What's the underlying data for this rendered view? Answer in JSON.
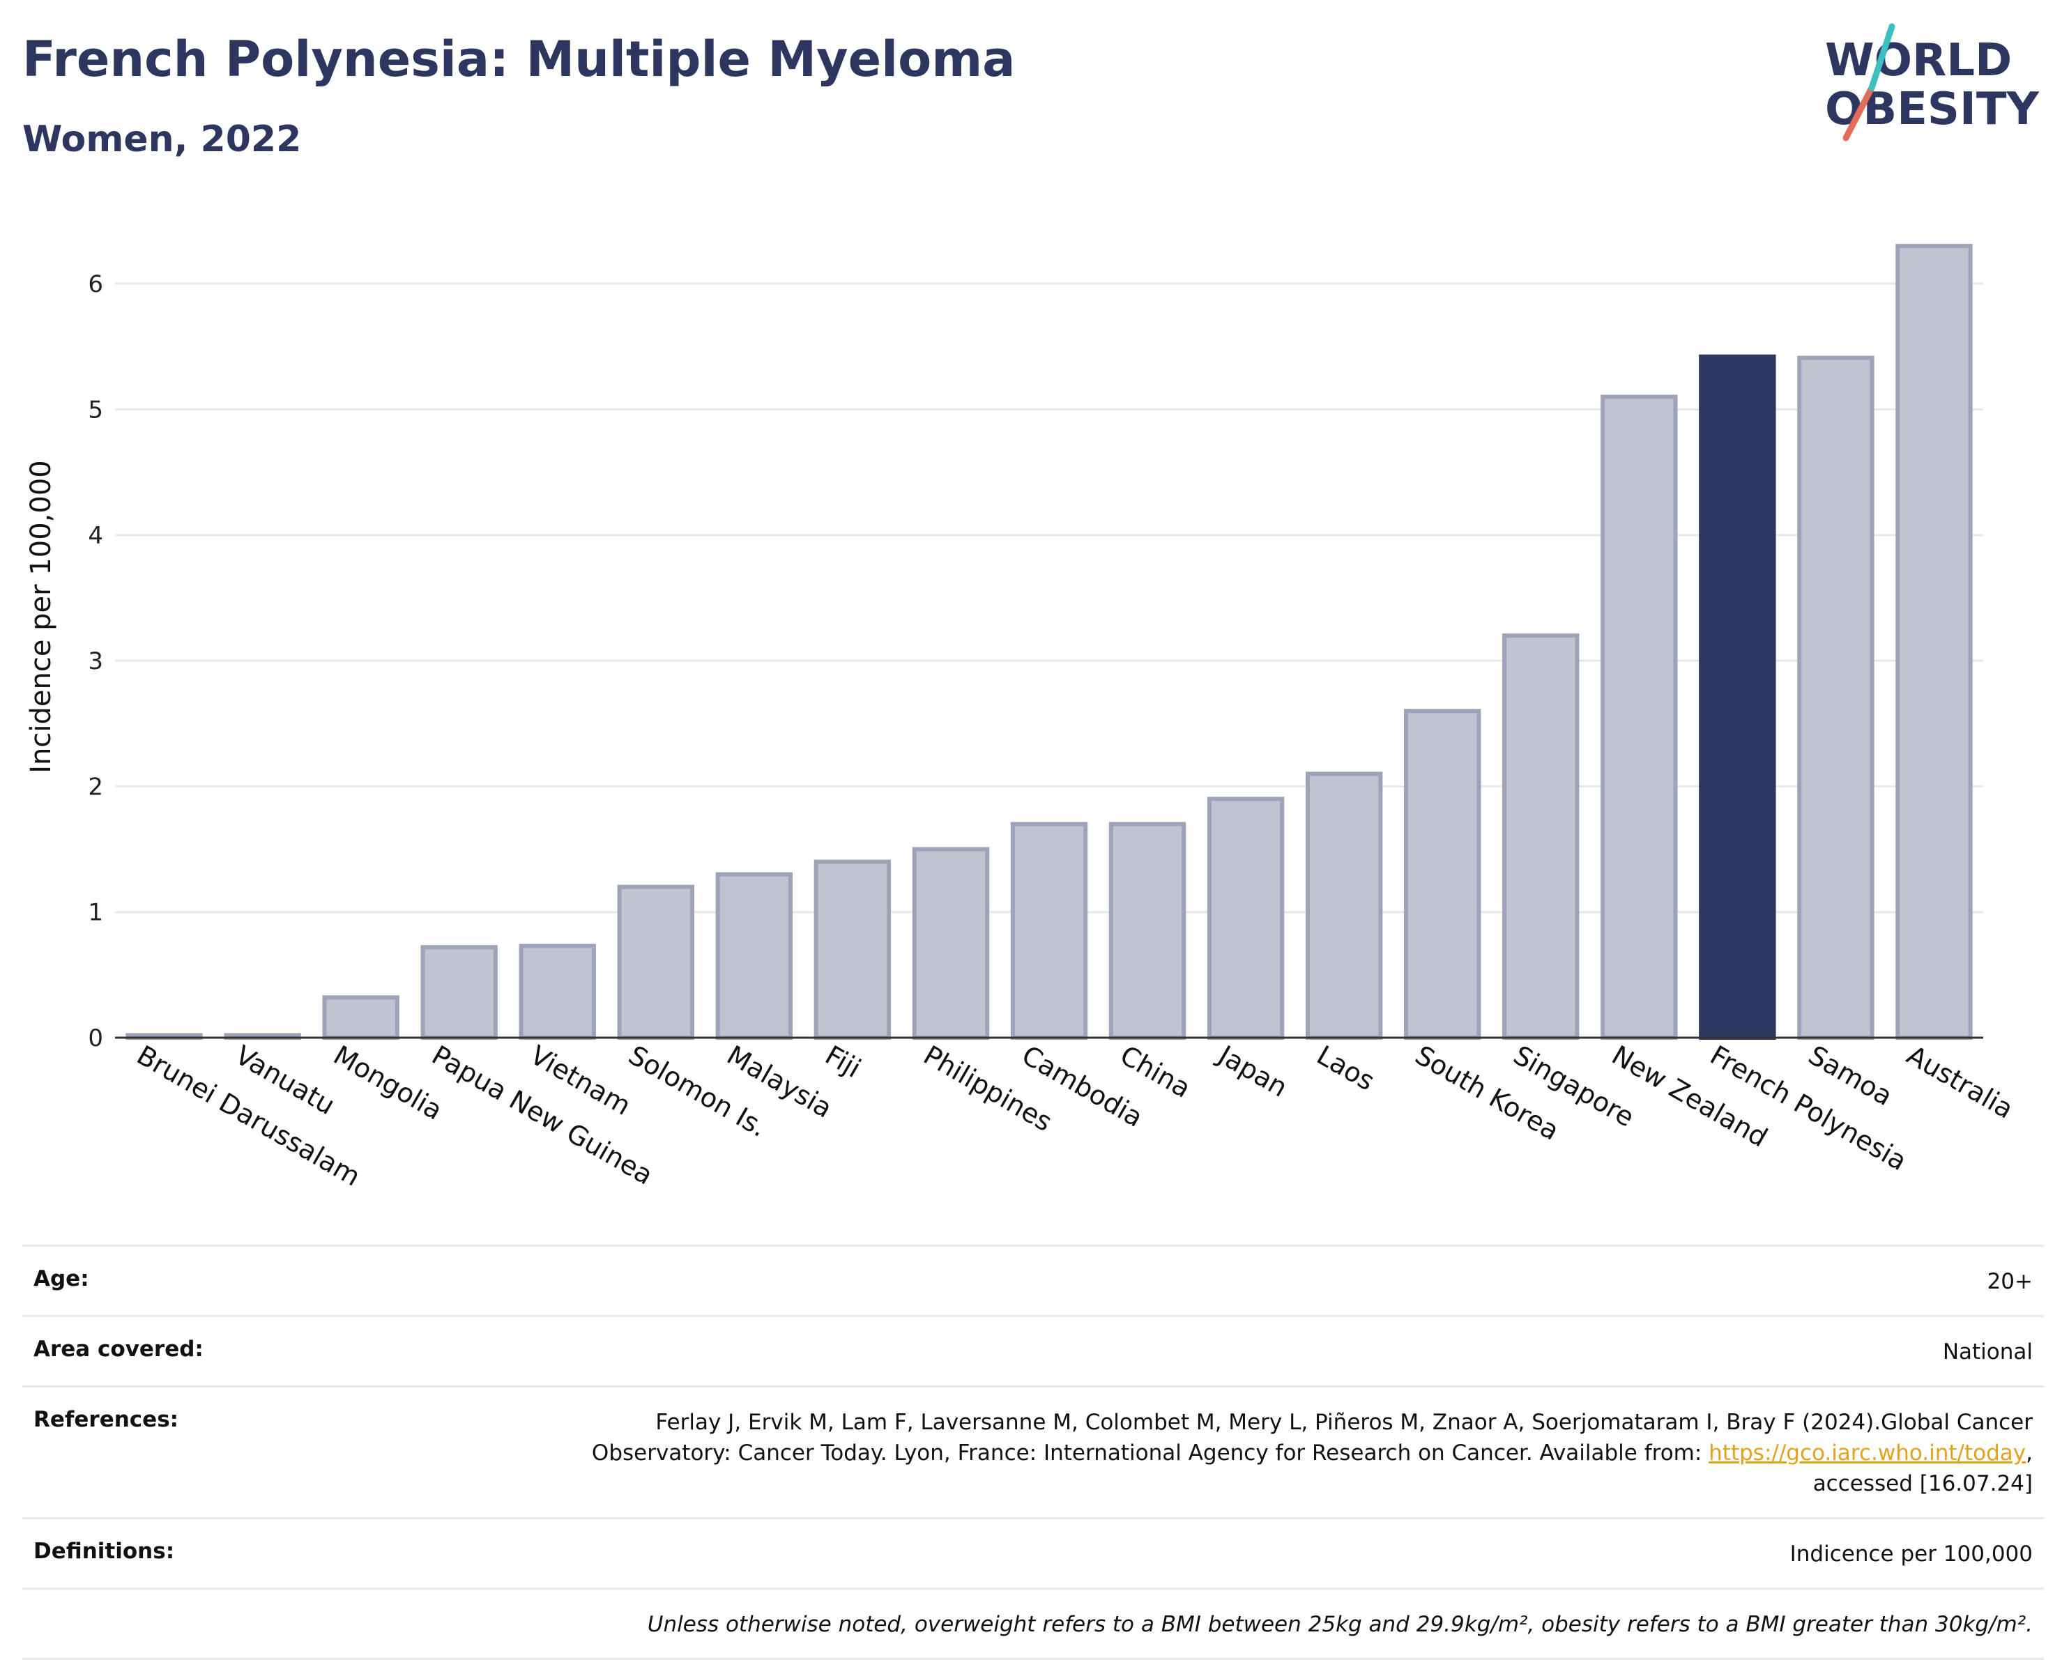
{
  "header": {
    "title": "French Polynesia: Multiple Myeloma",
    "subtitle": "Women, 2022",
    "logo_line1": "WORLD",
    "logo_line2": "OBESITY"
  },
  "chart_data": {
    "type": "bar",
    "title": "French Polynesia: Multiple Myeloma",
    "subtitle": "Women, 2022",
    "ylabel": "Incidence per 100,000",
    "xlabel": "",
    "ylim": [
      0,
      6.4
    ],
    "yticks": [
      0,
      1,
      2,
      3,
      4,
      5,
      6
    ],
    "grid": true,
    "highlight": "French Polynesia",
    "categories": [
      "Brunei Darussalam",
      "Vanuatu",
      "Mongolia",
      "Papua New Guinea",
      "Vietnam",
      "Solomon Is.",
      "Malaysia",
      "Fiji",
      "Philippines",
      "Cambodia",
      "China",
      "Japan",
      "Laos",
      "South Korea",
      "Singapore",
      "New Zealand",
      "French Polynesia",
      "Samoa",
      "Australia"
    ],
    "values": [
      0.02,
      0.02,
      0.32,
      0.72,
      0.73,
      1.2,
      1.3,
      1.4,
      1.5,
      1.7,
      1.7,
      1.9,
      2.1,
      2.6,
      3.2,
      5.1,
      5.42,
      5.41,
      6.3
    ],
    "colors": {
      "bar": "#c0c3d0",
      "bar_border": "#9ea3ba",
      "highlight": "#2c365e",
      "axis": "#333333",
      "grid": "#e6e8ee"
    }
  },
  "meta": {
    "age_label": "Age:",
    "age_value": "20+",
    "area_label": "Area covered:",
    "area_value": "National",
    "references_label": "References:",
    "references_line1": "Ferlay J, Ervik M, Lam F, Laversanne M, Colombet M, Mery L, Piñeros M, Znaor A, Soerjomataram I, Bray F (2024).Global Cancer",
    "references_line2": "Observatory: Cancer Today. Lyon, France: International Agency for Research on Cancer. Available from:",
    "references_link": "https://gco.iarc.who.int/today",
    "references_line3": "accessed [16.07.24]",
    "definitions_label": "Definitions:",
    "definitions_value": "Indicence per 100,000",
    "note": "Unless otherwise noted, overweight refers to a BMI between 25kg and 29.9kg/m², obesity refers to a BMI greater than 30kg/m²."
  }
}
